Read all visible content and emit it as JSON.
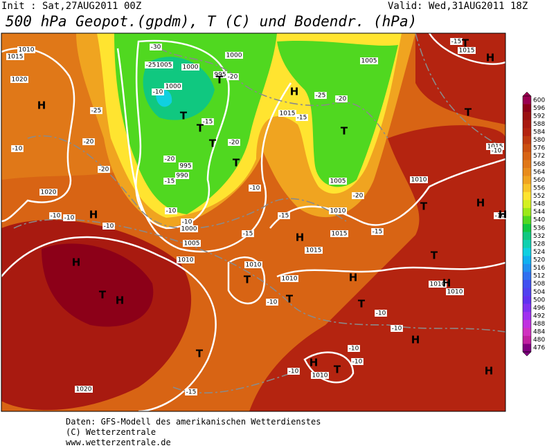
{
  "header": {
    "init": "Init : Sat,27AUG2011 00Z",
    "valid": "Valid: Wed,31AUG2011 18Z",
    "title": "500 hPa Geopot.(gpdm), T (C) und Bodendr. (hPa)"
  },
  "footer": {
    "lines": [
      "Daten: GFS-Modell des amerikanischen Wetterdienstes",
      "(C) Wetterzentrale",
      "www.wetterzentrale.de"
    ]
  },
  "colorbar": {
    "levels": [
      600,
      596,
      592,
      588,
      584,
      580,
      576,
      572,
      568,
      564,
      560,
      556,
      552,
      548,
      544,
      540,
      536,
      532,
      528,
      524,
      520,
      516,
      512,
      508,
      504,
      500,
      496,
      492,
      488,
      484,
      480,
      476
    ],
    "colors": [
      "#9a0050",
      "#8c0018",
      "#9a1010",
      "#a81a10",
      "#b42410",
      "#c03a10",
      "#cc5010",
      "#d86414",
      "#e07818",
      "#e88c1c",
      "#f0a420",
      "#f8c428",
      "#ffe430",
      "#d4f020",
      "#9ce818",
      "#50d820",
      "#10c840",
      "#10c880",
      "#10d0b0",
      "#10d0e0",
      "#10b0f0",
      "#2090f0",
      "#3070f0",
      "#4050f0",
      "#5040f0",
      "#6030f0",
      "#8030f0",
      "#a030f0",
      "#c030e0",
      "#d030c0",
      "#c020a0",
      "#800080"
    ]
  },
  "map": {
    "pressure_centers": [
      "H",
      "H",
      "H",
      "T",
      "H",
      "T",
      "T",
      "T",
      "H",
      "H",
      "T",
      "T",
      "T",
      "T",
      "T",
      "T",
      "T",
      "H",
      "T",
      "T",
      "H",
      "T",
      "H",
      "H",
      "H",
      "T",
      "H",
      "H",
      "T",
      "H"
    ],
    "isobar_labels": [
      1010,
      1015,
      1020,
      1005,
      1000,
      1000,
      995,
      1000,
      1015,
      1005,
      995,
      990,
      1000,
      1005,
      1010,
      1020,
      1010,
      1005,
      1010,
      1015,
      1015,
      1010,
      1010,
      1010,
      1010,
      1010,
      1020,
      1015,
      1015
    ],
    "isotherm_labels": [
      -30,
      -25,
      -10,
      -20,
      -25,
      -20,
      -20,
      -15,
      -10,
      -10,
      -10,
      -10,
      -10,
      -10,
      -15,
      -15,
      -10,
      -20,
      -15,
      -25,
      -20,
      -20,
      -20,
      -15,
      -10,
      -10,
      -10,
      -10,
      -10,
      -10,
      -10,
      -10,
      -15,
      -15,
      -15
    ]
  }
}
